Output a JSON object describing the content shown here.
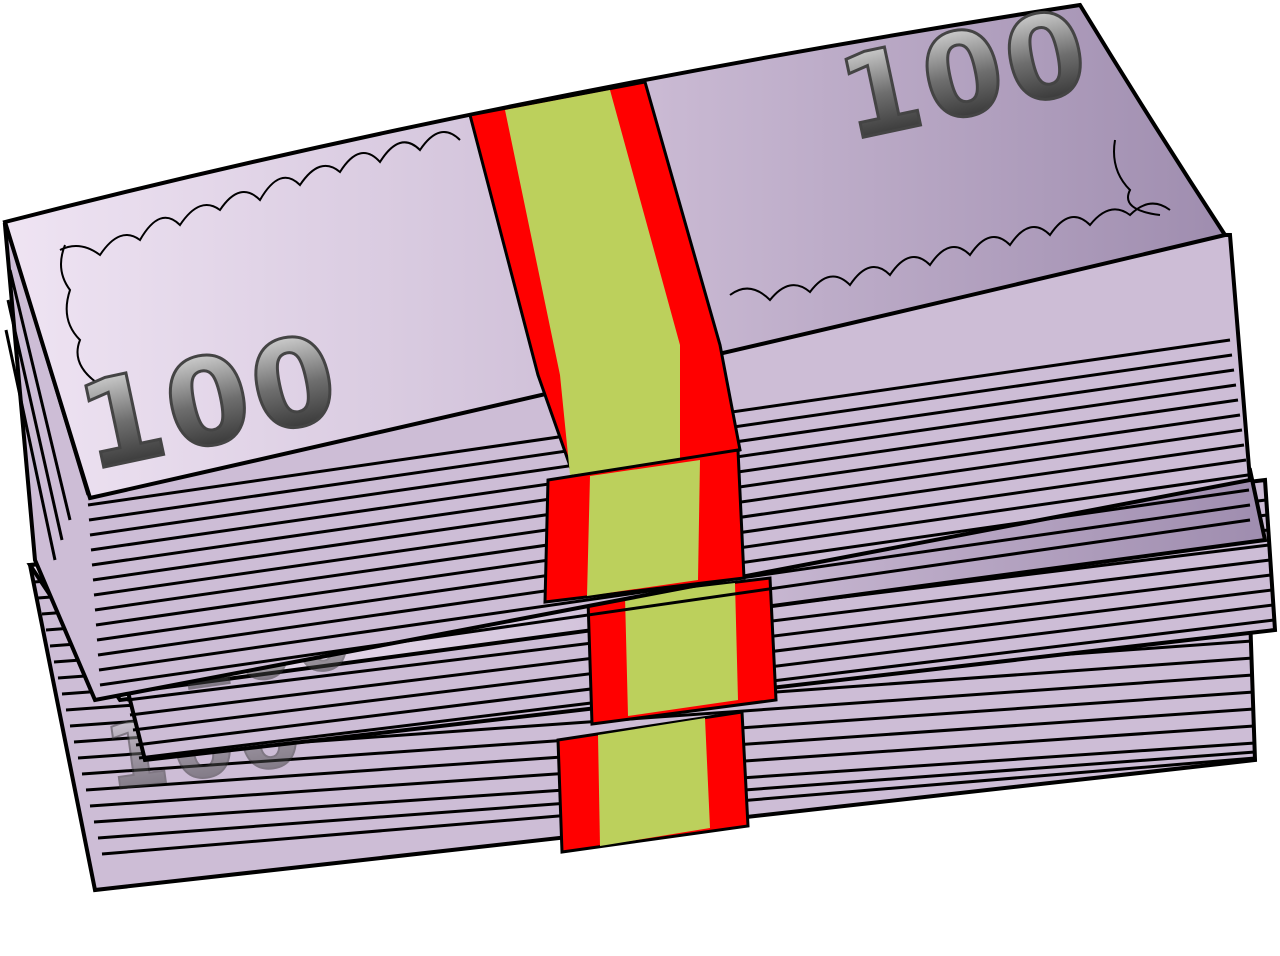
{
  "illustration": {
    "denomination": "100",
    "colors": {
      "bill": "#cdbdd6",
      "bill_light": "#efe4f3",
      "bill_dark": "#9f8daf",
      "outline": "#000000",
      "band_outer": "#ff0000",
      "band_inner": "#bcd05c",
      "numeral_fill": "#6e6e6e"
    }
  }
}
